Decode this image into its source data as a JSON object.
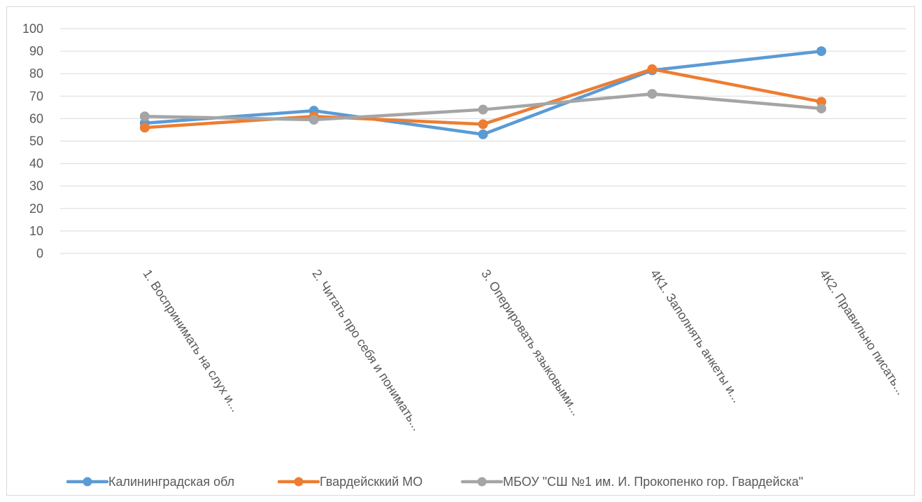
{
  "chart_data": {
    "type": "line",
    "title": "",
    "xlabel": "",
    "ylabel": "",
    "ylim": [
      0,
      100
    ],
    "yticks": [
      0,
      10,
      20,
      30,
      40,
      50,
      60,
      70,
      80,
      90,
      100
    ],
    "grid": true,
    "legend_position": "bottom",
    "categories": [
      "1. Воспринимать на слух и...",
      "2. Читать про себя и понимать...",
      "3. Оперировать языковыми...",
      "4К1. Заполнять анкеты и...",
      "4К2. Правильно писать..."
    ],
    "series": [
      {
        "name": "Калининградская обл",
        "color": "#5b9bd5",
        "values": [
          58,
          63.5,
          53,
          81.5,
          90
        ]
      },
      {
        "name": "Гвардейсккий МО",
        "color": "#ed7d31",
        "values": [
          56,
          61,
          57.5,
          82,
          67.5
        ]
      },
      {
        "name": "МБОУ \"СШ №1 им. И. Прокопенко гор. Гвардейска\"",
        "color": "#a5a5a5",
        "values": [
          61,
          59.5,
          64,
          71,
          64.5
        ]
      }
    ]
  }
}
